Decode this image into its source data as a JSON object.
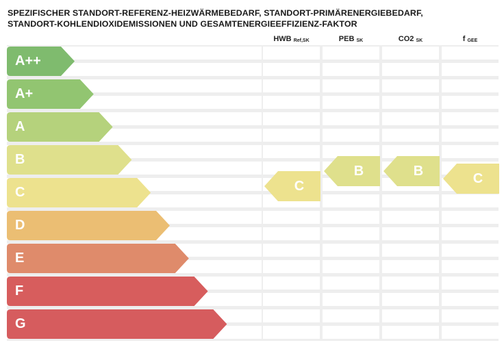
{
  "title": {
    "line1": "SPEZIFISCHER STANDORT-REFERENZ-HEIZWÄRMEBEDARF, STANDORT-PRIMÄRENERGIEBEDARF,",
    "line2": "STANDORT-KOHLENDIOXIDEMISSIONEN UND GESAMTENERGIEEFFIZIENZ-FAKTOR"
  },
  "columns": [
    {
      "name": "HWB",
      "sub": "Ref,SK"
    },
    {
      "name": "PEB",
      "sub": "SK"
    },
    {
      "name": "CO2",
      "sub": "SK"
    },
    {
      "name": "f",
      "sub": "GEE"
    }
  ],
  "classes": [
    {
      "label": "A++",
      "color": "#7fbb6e"
    },
    {
      "label": "A+",
      "color": "#92c571"
    },
    {
      "label": "A",
      "color": "#b5d27c"
    },
    {
      "label": "B",
      "color": "#dfe08c"
    },
    {
      "label": "C",
      "color": "#ede28e"
    },
    {
      "label": "D",
      "color": "#ebbe73"
    },
    {
      "label": "E",
      "color": "#df8b6b"
    },
    {
      "label": "F",
      "color": "#d75d5d"
    },
    {
      "label": "G",
      "color": "#d65c5e"
    }
  ],
  "ratings": [
    {
      "column": "HWB",
      "value": "C",
      "color": "#ede28e"
    },
    {
      "column": "PEB",
      "value": "B",
      "color": "#dfe08c"
    },
    {
      "column": "CO2",
      "value": "B",
      "color": "#dfe08c"
    },
    {
      "column": "f",
      "value": "C",
      "color": "#ede28e"
    }
  ]
}
